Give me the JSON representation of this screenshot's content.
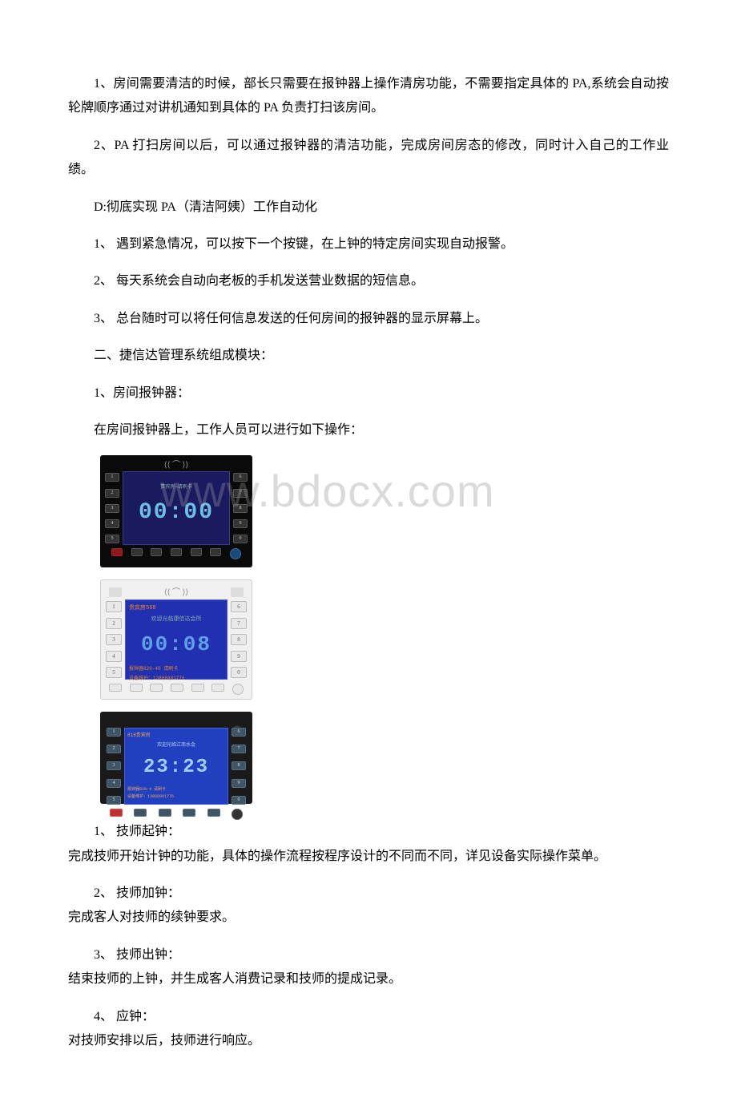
{
  "paragraphs": {
    "p1": "1、房间需要清洁的时候，部长只需要在报钟器上操作清房功能，不需要指定具体的 PA,系统会自动按轮牌顺序通过对讲机通知到具体的 PA 负责打扫该房间。",
    "p2": "2、PA 打扫房间以后，可以通过报钟器的清洁功能，完成房间房态的修改，同时计入自己的工作业绩。",
    "p3": "D:彻底实现 PA（清洁阿姨）工作自动化",
    "p4": "1、 遇到紧急情况，可以按下一个按键，在上钟的特定房间实现自动报警。",
    "p5": "2、 每天系统会自动向老板的手机发送营业数据的短信息。",
    "p6": "3、 总台随时可以将任何信息发送的任何房间的报钟器的显示屏幕上。",
    "p7": "二、捷信达管理系统组成模块：",
    "p8": "1、房间报钟器：",
    "p9": "在房间报钟器上，工作人员可以进行如下操作：",
    "p10": "1、 技师起钟：",
    "p10b": "完成技师开始计钟的功能，具体的操作流程按程序设计的不同而不同，详见设备实际操作菜单。",
    "p11": "2、 技师加钟：",
    "p11b": "完成客人对技师的续钟要求。",
    "p12": "3、 技师出钟：",
    "p12b": "结束技师的上钟，并生成客人消费记录和技师的提成记录。",
    "p13": "4、 应钟：",
    "p13b": "对技师安排以后，技师进行响应。"
  },
  "watermark": {
    "light": "ww",
    "main": "w.bdocx.com"
  },
  "device1": {
    "decoration": "⟨⟨ ⌒ ⟩⟩",
    "left_keys": [
      "1",
      "2",
      "3",
      "4",
      "5"
    ],
    "right_keys": [
      "6",
      "7",
      "8",
      "9",
      "0"
    ],
    "time": "00:00",
    "screen_text": "贵宾房—请刷卡",
    "bottom_keys": [
      "",
      "",
      "",
      "",
      "",
      ""
    ]
  },
  "device2": {
    "decoration": "⟨⟨ ⌒ ⟩⟩",
    "left_keys": [
      "1",
      "2",
      "3",
      "4",
      "5"
    ],
    "right_keys": [
      "6",
      "7",
      "8",
      "9",
      "0"
    ],
    "room": "贵宾房568",
    "subheader": "欢迎光临康信达会所",
    "time": "00:08",
    "footer1": "报钟器820-40    请刷卡",
    "footer2": "设备维护：13888881776",
    "bottom_keys": [
      "",
      "",
      "",
      "",
      "",
      ""
    ]
  },
  "device3": {
    "left_keys": [
      "1",
      "2",
      "3",
      "4",
      "5"
    ],
    "right_keys": [
      "6",
      "7",
      "8",
      "9",
      "0"
    ],
    "room": "818贵宾房",
    "subheader": "欢迎光临江南水会",
    "time": "23:23",
    "footer1": "报钟器820-4    请刷卡",
    "footer2": "设备维护：13888881776",
    "bottom_keys": [
      "",
      "",
      "",
      "",
      ""
    ]
  }
}
